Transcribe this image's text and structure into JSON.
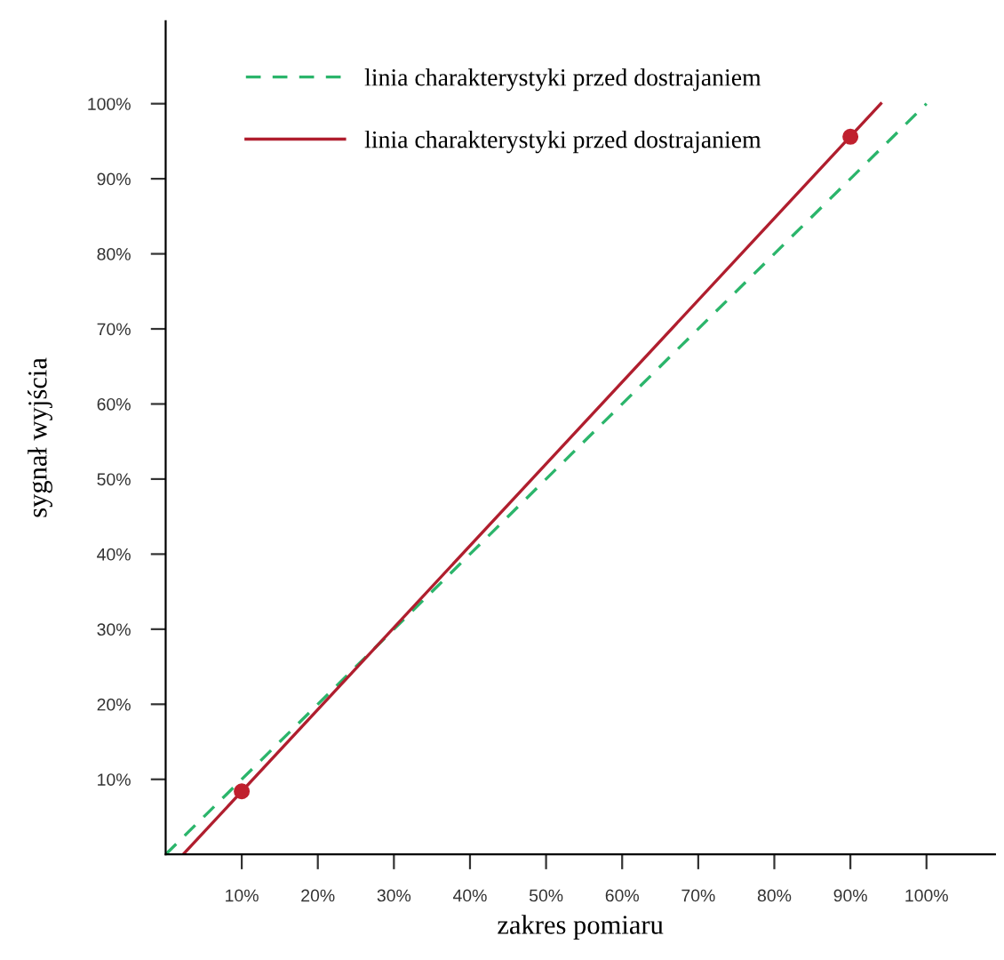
{
  "chart_data": {
    "type": "line",
    "xlabel": "zakres pomiaru",
    "ylabel": "sygnał wyjścia",
    "series": [
      {
        "name": "linia charakterystyki przed dostrajaniem",
        "color": "#2bb56b",
        "line_style": "dashed",
        "x": [
          0,
          100
        ],
        "values": [
          0,
          100
        ]
      },
      {
        "name": "linia charakterystyki przed dostrajaniem",
        "color": "#b01e2e",
        "line_style": "solid",
        "x": [
          2.3,
          94
        ],
        "values": [
          0,
          100
        ]
      },
      {
        "type": "scatter",
        "color": "#c0202e",
        "marker": "circle",
        "x": [
          10,
          90
        ],
        "values": [
          8.4,
          95.6
        ]
      }
    ],
    "xlim": [
      0,
      109
    ],
    "ylim": [
      0,
      111
    ],
    "xticks": [
      {
        "value": 10,
        "label": "10%"
      },
      {
        "value": 20,
        "label": "20%"
      },
      {
        "value": 30,
        "label": "30%"
      },
      {
        "value": 40,
        "label": "40%"
      },
      {
        "value": 50,
        "label": "50%"
      },
      {
        "value": 60,
        "label": "60%"
      },
      {
        "value": 70,
        "label": "70%"
      },
      {
        "value": 80,
        "label": "80%"
      },
      {
        "value": 90,
        "label": "90%"
      },
      {
        "value": 100,
        "label": "100%"
      }
    ],
    "yticks": [
      {
        "value": 10,
        "label": "10%"
      },
      {
        "value": 20,
        "label": "20%"
      },
      {
        "value": 30,
        "label": "30%"
      },
      {
        "value": 40,
        "label": "40%"
      },
      {
        "value": 50,
        "label": "50%"
      },
      {
        "value": 60,
        "label": "60%"
      },
      {
        "value": 70,
        "label": "70%"
      },
      {
        "value": 80,
        "label": "80%"
      },
      {
        "value": 90,
        "label": "90%"
      },
      {
        "value": 100,
        "label": "100%"
      }
    ],
    "grid": false,
    "legend": "top left"
  }
}
